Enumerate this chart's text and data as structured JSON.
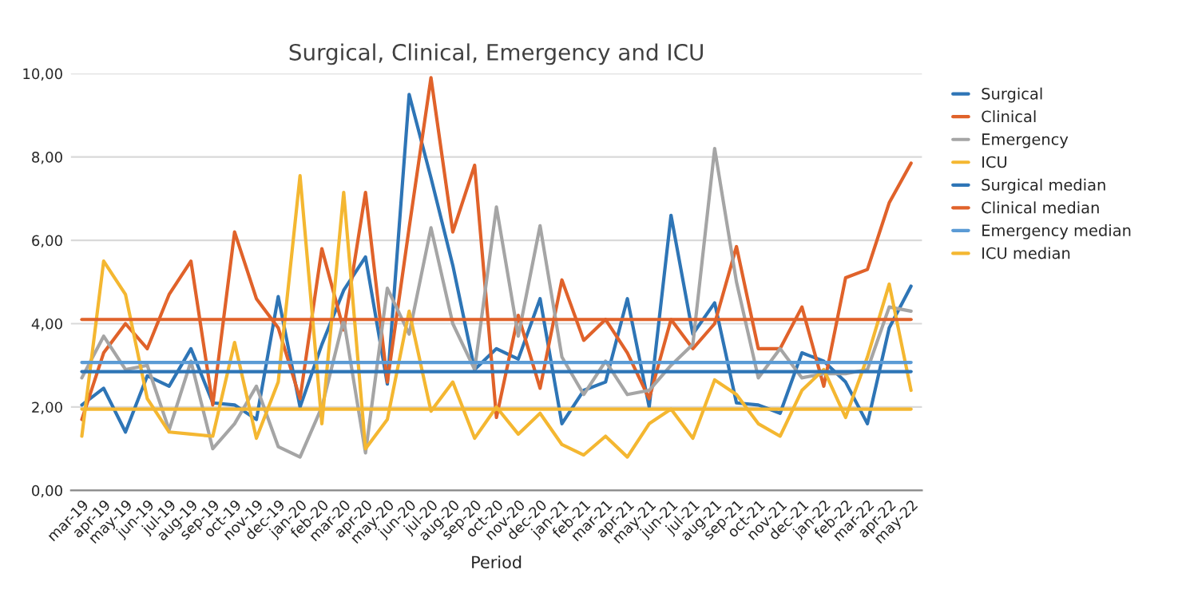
{
  "chart_data": {
    "type": "line",
    "title": "Surgical, Clinical, Emergency and ICU",
    "xlabel": "Period",
    "categories": [
      "mar-19",
      "apr-19",
      "may-19",
      "jun-19",
      "jul-19",
      "aug-19",
      "sep-19",
      "oct-19",
      "nov-19",
      "dec-19",
      "jan-20",
      "feb-20",
      "mar-20",
      "apr-20",
      "may-20",
      "jun-20",
      "jul-20",
      "aug-20",
      "sep-20",
      "oct-20",
      "nov-20",
      "dec-20",
      "jan-21",
      "feb-21",
      "mar-21",
      "apr-21",
      "may-21",
      "jun-21",
      "jul-21",
      "aug-21",
      "sep-21",
      "oct-21",
      "nov-21",
      "dec-21",
      "jan-22",
      "feb-22",
      "mar-22",
      "apr-22",
      "may-22"
    ],
    "series": [
      {
        "name": "Surgical",
        "color": "#2e75b6",
        "values": [
          2.05,
          2.45,
          1.4,
          2.75,
          2.5,
          3.4,
          2.1,
          2.05,
          1.7,
          4.65,
          2.0,
          3.5,
          4.8,
          5.6,
          2.55,
          9.5,
          7.5,
          5.4,
          2.9,
          3.4,
          3.15,
          4.6,
          1.6,
          2.4,
          2.6,
          4.6,
          2.0,
          6.6,
          3.75,
          4.5,
          2.1,
          2.05,
          1.85,
          3.3,
          3.1,
          2.6,
          1.6,
          3.9,
          4.9
        ]
      },
      {
        "name": "Clinical",
        "color": "#e0622a",
        "values": [
          1.7,
          3.3,
          4.0,
          3.4,
          4.7,
          5.5,
          2.05,
          6.2,
          4.6,
          3.9,
          2.2,
          5.8,
          3.85,
          7.15,
          2.6,
          6.3,
          9.9,
          6.2,
          7.8,
          1.75,
          4.2,
          2.45,
          5.05,
          3.6,
          4.1,
          3.3,
          2.2,
          4.1,
          3.4,
          4.0,
          5.85,
          3.4,
          3.4,
          4.4,
          2.5,
          5.1,
          5.3,
          6.9,
          7.85
        ]
      },
      {
        "name": "Emergency",
        "color": "#a5a5a5",
        "values": [
          2.7,
          3.7,
          2.9,
          3.0,
          1.45,
          3.1,
          1.0,
          1.6,
          2.5,
          1.05,
          0.8,
          2.0,
          4.1,
          0.9,
          4.85,
          3.75,
          6.3,
          4.0,
          2.9,
          6.8,
          3.7,
          6.35,
          3.2,
          2.3,
          3.1,
          2.3,
          2.4,
          3.0,
          3.5,
          8.2,
          5.0,
          2.7,
          3.4,
          2.7,
          2.8,
          2.8,
          2.9,
          4.4,
          4.3
        ]
      },
      {
        "name": "ICU",
        "color": "#f4b731",
        "values": [
          1.3,
          5.5,
          4.7,
          2.2,
          1.4,
          1.35,
          1.3,
          3.55,
          1.25,
          2.6,
          7.55,
          1.6,
          7.15,
          1.0,
          1.7,
          4.3,
          1.9,
          2.6,
          1.25,
          2.0,
          1.35,
          1.85,
          1.1,
          0.85,
          1.3,
          0.8,
          1.6,
          1.95,
          1.25,
          2.65,
          2.3,
          1.6,
          1.3,
          2.4,
          2.9,
          1.75,
          3.2,
          4.95,
          2.4
        ]
      },
      {
        "name": "Surgical median",
        "color": "#2e75b6",
        "values": [
          2.85,
          2.85,
          2.85,
          2.85,
          2.85,
          2.85,
          2.85,
          2.85,
          2.85,
          2.85,
          2.85,
          2.85,
          2.85,
          2.85,
          2.85,
          2.85,
          2.85,
          2.85,
          2.85,
          2.85,
          2.85,
          2.85,
          2.85,
          2.85,
          2.85,
          2.85,
          2.85,
          2.85,
          2.85,
          2.85,
          2.85,
          2.85,
          2.85,
          2.85,
          2.85,
          2.85,
          2.85,
          2.85,
          2.85
        ]
      },
      {
        "name": "Clinical median",
        "color": "#e0622a",
        "values": [
          4.1,
          4.1,
          4.1,
          4.1,
          4.1,
          4.1,
          4.1,
          4.1,
          4.1,
          4.1,
          4.1,
          4.1,
          4.1,
          4.1,
          4.1,
          4.1,
          4.1,
          4.1,
          4.1,
          4.1,
          4.1,
          4.1,
          4.1,
          4.1,
          4.1,
          4.1,
          4.1,
          4.1,
          4.1,
          4.1,
          4.1,
          4.1,
          4.1,
          4.1,
          4.1,
          4.1,
          4.1,
          4.1,
          4.1
        ]
      },
      {
        "name": "Emergency median",
        "color": "#5b9bd5",
        "values": [
          3.07,
          3.07,
          3.07,
          3.07,
          3.07,
          3.07,
          3.07,
          3.07,
          3.07,
          3.07,
          3.07,
          3.07,
          3.07,
          3.07,
          3.07,
          3.07,
          3.07,
          3.07,
          3.07,
          3.07,
          3.07,
          3.07,
          3.07,
          3.07,
          3.07,
          3.07,
          3.07,
          3.07,
          3.07,
          3.07,
          3.07,
          3.07,
          3.07,
          3.07,
          3.07,
          3.07,
          3.07,
          3.07,
          3.07
        ]
      },
      {
        "name": "ICU median",
        "color": "#f4b731",
        "values": [
          1.95,
          1.95,
          1.95,
          1.95,
          1.95,
          1.95,
          1.95,
          1.95,
          1.95,
          1.95,
          1.95,
          1.95,
          1.95,
          1.95,
          1.95,
          1.95,
          1.95,
          1.95,
          1.95,
          1.95,
          1.95,
          1.95,
          1.95,
          1.95,
          1.95,
          1.95,
          1.95,
          1.95,
          1.95,
          1.95,
          1.95,
          1.95,
          1.95,
          1.95,
          1.95,
          1.95,
          1.95,
          1.95,
          1.95
        ]
      }
    ],
    "ylim": [
      0,
      10
    ],
    "yticks": [
      {
        "value": 0,
        "label": "0,00"
      },
      {
        "value": 2,
        "label": "2,00"
      },
      {
        "value": 4,
        "label": "4,00"
      },
      {
        "value": 6,
        "label": "6,00"
      },
      {
        "value": 8,
        "label": "8,00"
      },
      {
        "value": 10,
        "label": "10,00"
      }
    ],
    "grid": "y",
    "legend": "right",
    "marker": "none",
    "line_style": "solid"
  }
}
